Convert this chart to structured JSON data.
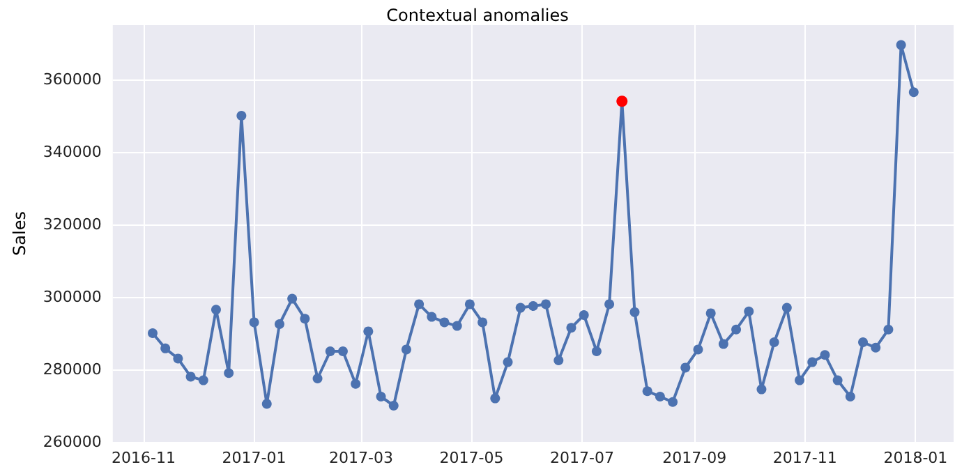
{
  "chart_data": {
    "type": "line",
    "title": "Contextual anomalies",
    "ylabel": "Sales",
    "x": [
      "2016-11-06",
      "2016-11-13",
      "2016-11-20",
      "2016-11-27",
      "2016-12-04",
      "2016-12-11",
      "2016-12-18",
      "2016-12-25",
      "2017-01-01",
      "2017-01-08",
      "2017-01-15",
      "2017-01-22",
      "2017-01-29",
      "2017-02-05",
      "2017-02-12",
      "2017-02-19",
      "2017-02-26",
      "2017-03-05",
      "2017-03-12",
      "2017-03-19",
      "2017-03-26",
      "2017-04-02",
      "2017-04-09",
      "2017-04-16",
      "2017-04-23",
      "2017-04-30",
      "2017-05-07",
      "2017-05-14",
      "2017-05-21",
      "2017-05-28",
      "2017-06-04",
      "2017-06-11",
      "2017-06-18",
      "2017-06-25",
      "2017-07-02",
      "2017-07-09",
      "2017-07-16",
      "2017-07-23",
      "2017-07-30",
      "2017-08-06",
      "2017-08-13",
      "2017-08-20",
      "2017-08-27",
      "2017-09-03",
      "2017-09-10",
      "2017-09-17",
      "2017-09-24",
      "2017-10-01",
      "2017-10-08",
      "2017-10-15",
      "2017-10-22",
      "2017-10-29",
      "2017-11-05",
      "2017-11-12",
      "2017-11-19",
      "2017-11-26",
      "2017-12-03",
      "2017-12-10",
      "2017-12-17",
      "2017-12-24",
      "2017-12-31"
    ],
    "series": [
      {
        "color": "#4c72b0",
        "values": [
          290000,
          285800,
          283000,
          278000,
          277000,
          296500,
          279000,
          350000,
          293000,
          270500,
          292500,
          299500,
          294000,
          277500,
          285000,
          285000,
          276000,
          290500,
          272500,
          270000,
          285500,
          298000,
          294500,
          293000,
          292000,
          298000,
          293000,
          272000,
          282000,
          297000,
          297500,
          298000,
          282500,
          291500,
          295000,
          285000,
          298000,
          354000,
          295800,
          274000,
          272500,
          271000,
          280500,
          285500,
          295500,
          287000,
          291000,
          296000,
          274500,
          287500,
          297000,
          277000,
          282000,
          284000,
          277000,
          272500,
          287500,
          286000,
          291000,
          369500,
          356500
        ]
      },
      {
        "type": "scatter",
        "color": "#ff0000",
        "x": [
          "2017-07-23"
        ],
        "values": [
          354000
        ]
      }
    ],
    "xlim": [
      "2016-10-15",
      "2018-01-22"
    ],
    "xticks": [
      {
        "value": "2016-11-01",
        "label": "2016-11"
      },
      {
        "value": "2017-01-01",
        "label": "2017-01"
      },
      {
        "value": "2017-03-01",
        "label": "2017-03"
      },
      {
        "value": "2017-05-01",
        "label": "2017-05"
      },
      {
        "value": "2017-07-01",
        "label": "2017-07"
      },
      {
        "value": "2017-09-01",
        "label": "2017-09"
      },
      {
        "value": "2017-11-01",
        "label": "2017-11"
      },
      {
        "value": "2018-01-01",
        "label": "2018-01"
      }
    ],
    "ylim": [
      260000,
      375000
    ],
    "yticks": [
      260000,
      280000,
      300000,
      320000,
      340000,
      360000
    ],
    "grid": true,
    "marker": "circle",
    "line_style": "solid"
  }
}
